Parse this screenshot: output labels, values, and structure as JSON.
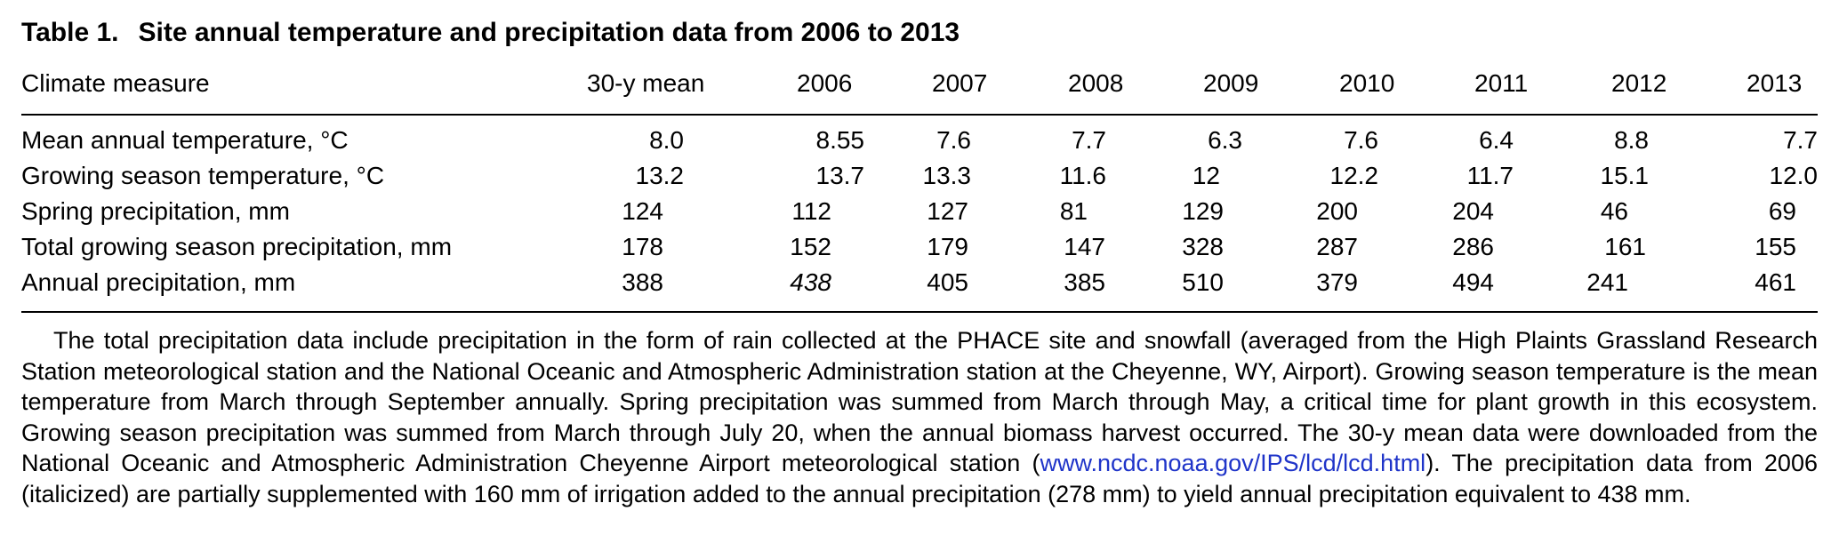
{
  "table": {
    "label": "Table 1.",
    "title": "Site annual temperature and precipitation data from 2006 to 2013",
    "columns": [
      "Climate measure",
      "30-y mean",
      "2006",
      "2007",
      "2008",
      "2009",
      "2010",
      "2011",
      "2012",
      "2013"
    ],
    "rows": [
      {
        "label": "Mean annual temperature, °C",
        "values": [
          "8.0",
          "8.55",
          "7.6",
          "7.7",
          "6.3",
          "7.6",
          "6.4",
          "8.8",
          "7.7"
        ]
      },
      {
        "label": "Growing season temperature, °C",
        "values": [
          "13.2",
          "13.7",
          "13.3",
          "11.6",
          "12",
          "12.2",
          "11.7",
          "15.1",
          "12.0"
        ]
      },
      {
        "label": "Spring precipitation, mm",
        "values": [
          "124",
          "112",
          "127",
          "81",
          "129",
          "200",
          "204",
          "46",
          "69"
        ]
      },
      {
        "label": "Total growing season precipitation, mm",
        "values": [
          "178",
          "152",
          "179",
          "147",
          "328",
          "287",
          "286",
          "161",
          "155"
        ]
      },
      {
        "label": "Annual precipitation, mm",
        "values": [
          "388",
          "438",
          "405",
          "385",
          "510",
          "379",
          "494",
          "241",
          "461"
        ]
      }
    ],
    "italic_note_value": "438"
  },
  "footnote": {
    "text_before_link": "The total precipitation data include precipitation in the form of rain collected at the PHACE site and snowfall (averaged from the High Plaints Grassland Research Station meteorological station and the National Oceanic and Atmospheric Administration station at the Cheyenne, WY, Airport). Growing season temperature is the mean temperature from March through September annually. Spring precipitation was summed from March through May, a critical time for plant growth in this ecosystem. Growing season precipitation was summed from March through July 20, when the annual biomass harvest occurred. The 30-y mean data were downloaded from the National Oceanic and Atmospheric Administration Cheyenne Airport meteorological station (",
    "link_text": "www.ncdc.noaa.gov/IPS/lcd/lcd.html",
    "text_after_link": "). The precipitation data from 2006 (italicized) are partially supplemented with 160 mm of irrigation added to the annual precipitation (278 mm) to yield annual precipitation equivalent to 438 mm.",
    "link_color": "#1f34c9"
  }
}
